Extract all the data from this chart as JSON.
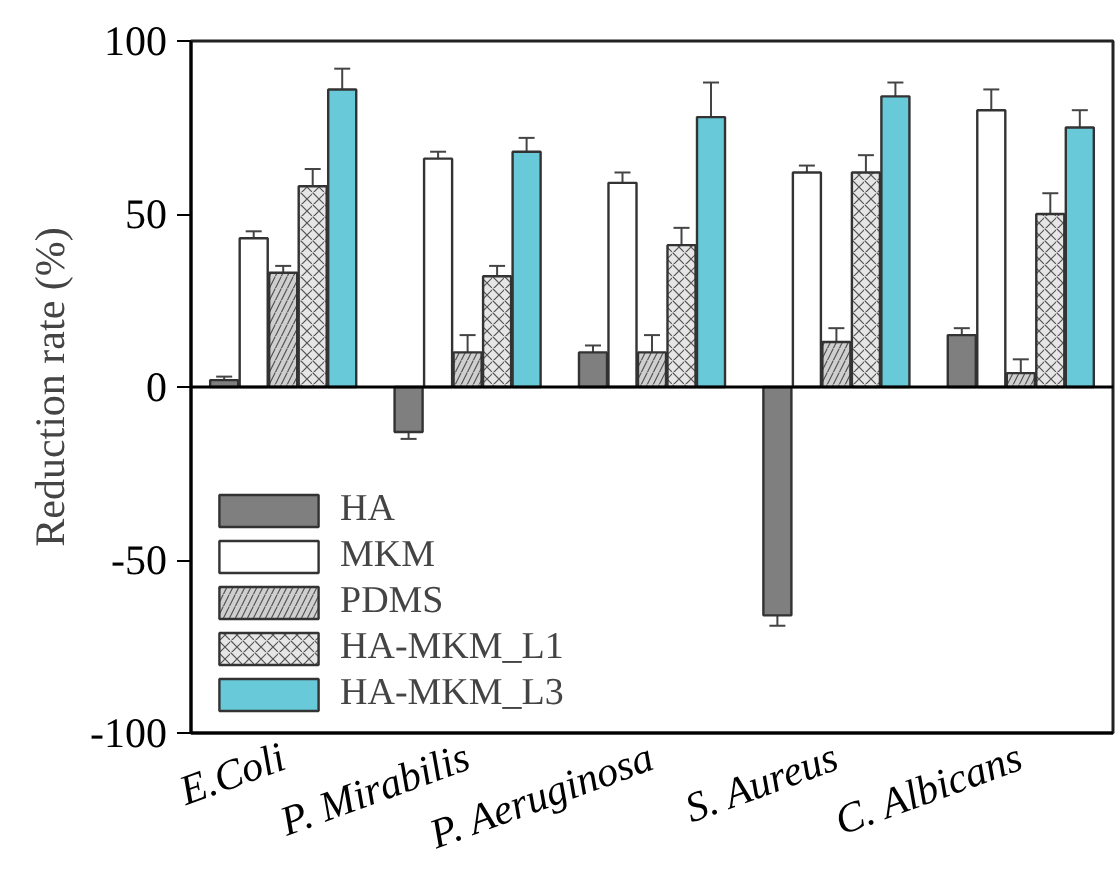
{
  "chart_data": {
    "type": "bar",
    "ylabel": "Reduction rate (%)",
    "categories": [
      "E.Coli",
      "P. Mirabilis",
      "P. Aeruginosa",
      "S. Aureus",
      "C. Albicans"
    ],
    "series": [
      {
        "name": "HA",
        "color": "#7f7f7f",
        "values": [
          2,
          -13,
          10,
          -66,
          15
        ],
        "errors": [
          1,
          2,
          2,
          3,
          2
        ]
      },
      {
        "name": "MKM",
        "color": "#ffffff",
        "values": [
          43,
          66,
          59,
          62,
          80
        ],
        "errors": [
          2,
          2,
          3,
          2,
          6
        ]
      },
      {
        "name": "PDMS",
        "color": "#cfcfcf",
        "values": [
          33,
          10,
          10,
          13,
          4
        ],
        "errors": [
          2,
          5,
          5,
          4,
          4
        ]
      },
      {
        "name": "HA-MKM_L1",
        "color": "#e6e6e6",
        "values": [
          58,
          32,
          41,
          62,
          50
        ],
        "errors": [
          5,
          3,
          5,
          5,
          6
        ]
      },
      {
        "name": "HA-MKM_L3",
        "color": "#68c9d9",
        "values": [
          86,
          68,
          78,
          84,
          75
        ],
        "errors": [
          6,
          4,
          10,
          4,
          5
        ]
      }
    ],
    "ylim": [
      -100,
      100
    ],
    "yticks": [
      -100,
      -50,
      0,
      50,
      100
    ],
    "legend": "bottom left",
    "grid": false,
    "ref_lines": [
      {
        "axis": "y",
        "value": 0
      }
    ]
  }
}
